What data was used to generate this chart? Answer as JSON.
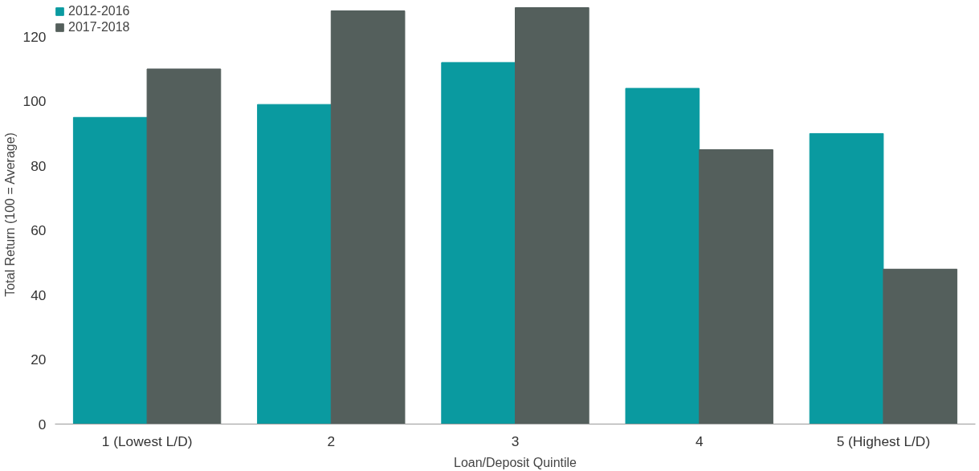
{
  "chart_data": {
    "type": "bar",
    "xlabel": "Loan/Deposit Quintile",
    "ylabel": "Total Return (100 = Average)",
    "categories": [
      "1 (Lowest L/D)",
      "2",
      "3",
      "4",
      "5 (Highest L/D)"
    ],
    "series": [
      {
        "name": "2012-2016",
        "color": "#0a9aa0",
        "values": [
          95,
          99,
          112,
          104,
          90
        ]
      },
      {
        "name": "2017-2018",
        "color": "#545f5c",
        "values": [
          110,
          128,
          129,
          85,
          48
        ]
      }
    ],
    "ylim": [
      0,
      130
    ],
    "yticks": [
      0,
      20,
      40,
      60,
      80,
      100,
      120
    ],
    "grid": false,
    "legend": "top left"
  }
}
